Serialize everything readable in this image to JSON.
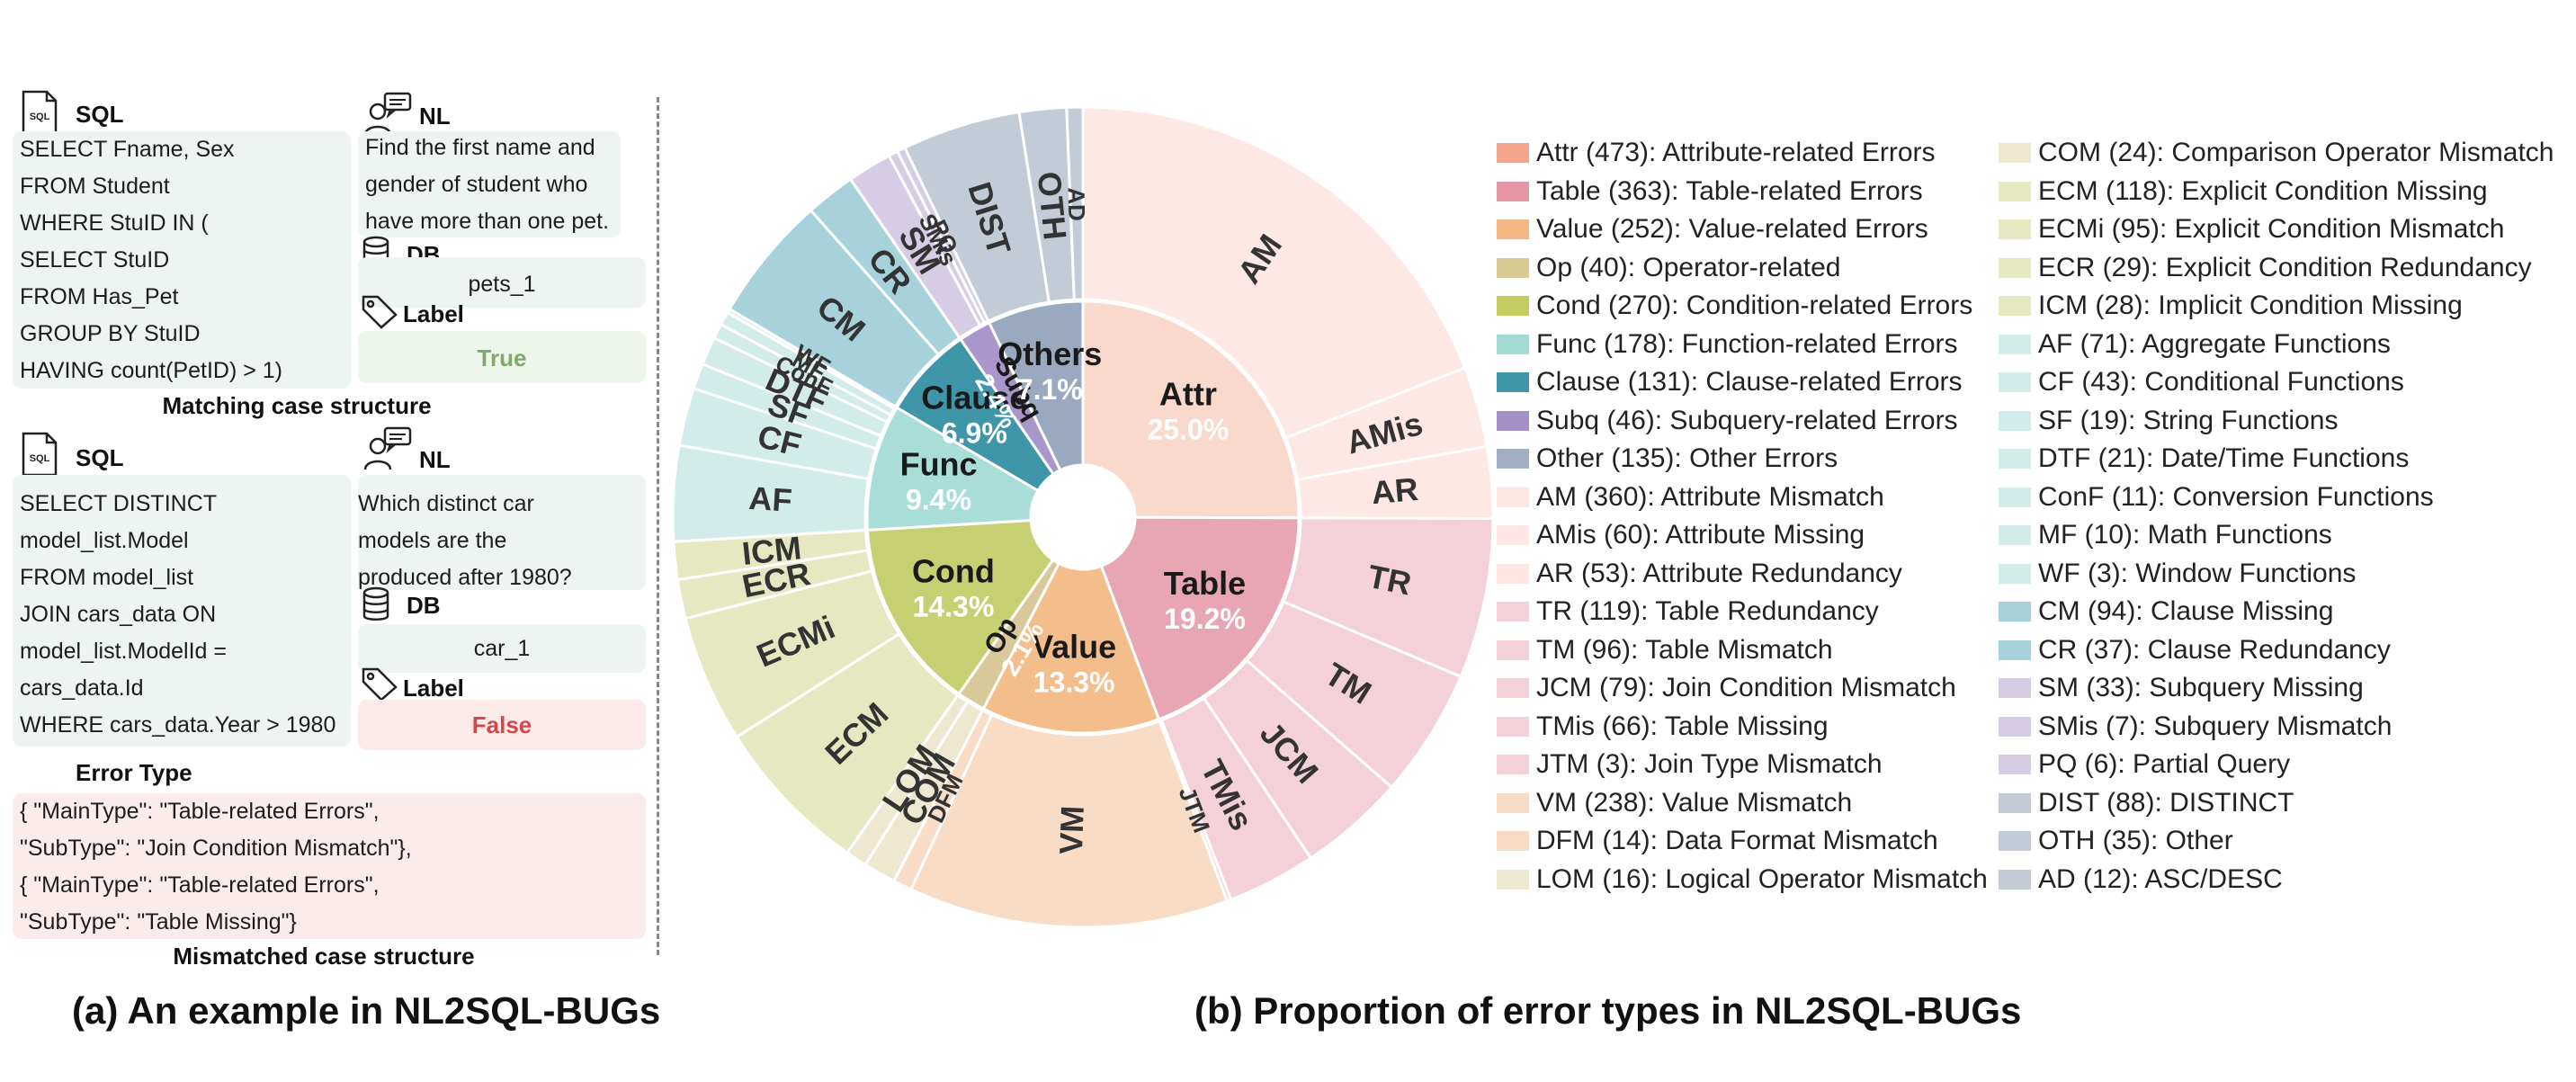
{
  "left": {
    "example1": {
      "sql_header": "SQL",
      "sql_lines": [
        "SELECT Fname, Sex",
        "FROM Student",
        "WHERE StuID IN (",
        "SELECT StuID",
        "FROM Has_Pet",
        "GROUP BY StuID",
        "HAVING count(PetID) > 1)"
      ],
      "nl_header": "NL",
      "nl_lines": [
        "Find the first name and",
        "gender of student who",
        "have more than one pet."
      ],
      "db_header": "DB",
      "db_value": "pets_1",
      "label_header": "Label",
      "label_value": "True",
      "caption": "Matching case structure"
    },
    "example2": {
      "sql_header": "SQL",
      "sql_lines": [
        "SELECT DISTINCT",
        "model_list.Model",
        "FROM model_list",
        "JOIN cars_data ON",
        "model_list.ModelId =",
        "cars_data.Id",
        "WHERE cars_data.Year > 1980"
      ],
      "nl_header": "NL",
      "nl_lines": [
        "Which distinct car",
        "models are the",
        "produced after 1980?"
      ],
      "db_header": "DB",
      "db_value": "car_1",
      "label_header": "Label",
      "label_value": "False"
    },
    "error_type": {
      "header": "Error Type",
      "lines": [
        "{ \"MainType\": \"Table-related Errors\",",
        " \"SubType\": \"Join Condition Mismatch\"},",
        "{ \"MainType\": \"Table-related Errors\",",
        " \"SubType\": \"Table Missing\"}"
      ],
      "caption": "Mismatched case structure"
    },
    "panel_caption": "(a) An example in NL2SQL-BUGs",
    "icon_labels": {
      "sql_doc": "SQL"
    }
  },
  "right": {
    "panel_caption": "(b) Proportion of error types in NL2SQL-BUGs"
  },
  "chart_data": {
    "type": "sunburst",
    "inner": [
      {
        "key": "Attr",
        "label": "Attr",
        "percent": "25.0%",
        "value": 473,
        "color": "#f9d9cc",
        "text_color": "#222"
      },
      {
        "key": "Table",
        "label": "Table",
        "percent": "19.2%",
        "value": 363,
        "color": "#e8a5b3",
        "text_color": "#222"
      },
      {
        "key": "Value",
        "label": "Value",
        "percent": "13.3%",
        "value": 252,
        "color": "#f4bd8c",
        "text_color": "#222"
      },
      {
        "key": "Op",
        "label": "Op",
        "percent": "2.1%",
        "value": 40,
        "color": "#d9c99a",
        "text_color": "#222"
      },
      {
        "key": "Cond",
        "label": "Cond",
        "percent": "14.3%",
        "value": 270,
        "color": "#c7cf73",
        "text_color": "#222"
      },
      {
        "key": "Func",
        "label": "Func",
        "percent": "9.4%",
        "value": 178,
        "color": "#a9ddd7",
        "text_color": "#222"
      },
      {
        "key": "Clause",
        "label": "Clause",
        "percent": "6.9%",
        "value": 131,
        "color": "#3e96a8",
        "text_color": "#222"
      },
      {
        "key": "Subq",
        "label": "Subq",
        "percent": "2.4%",
        "value": 46,
        "color": "#a996cb",
        "text_color": "#222"
      },
      {
        "key": "Others",
        "label": "Others",
        "percent": "7.1%",
        "value": 135,
        "color": "#99a9bf",
        "text_color": "#222"
      }
    ],
    "outer": [
      {
        "label": "AM",
        "value": 360,
        "color": "#fde8e6",
        "parent": "Attr",
        "show": true
      },
      {
        "label": "AMis",
        "value": 60,
        "color": "#fde8e6",
        "parent": "Attr",
        "show": true
      },
      {
        "label": "AR",
        "value": 53,
        "color": "#fde8e6",
        "parent": "Attr",
        "show": true
      },
      {
        "label": "TR",
        "value": 119,
        "color": "#f4d0d8",
        "parent": "Table",
        "show": true
      },
      {
        "label": "TM",
        "value": 96,
        "color": "#f4d0d8",
        "parent": "Table",
        "show": true
      },
      {
        "label": "JCM",
        "value": 79,
        "color": "#f4d0d8",
        "parent": "Table",
        "show": true
      },
      {
        "label": "TMis",
        "value": 66,
        "color": "#f4d0d8",
        "parent": "Table",
        "show": true
      },
      {
        "label": "JTM",
        "value": 3,
        "color": "#f4d0d8",
        "parent": "Table",
        "show": true
      },
      {
        "label": "VM",
        "value": 238,
        "color": "#f8dcc6",
        "parent": "Value",
        "show": true
      },
      {
        "label": "DFM",
        "value": 14,
        "color": "#f8dcc6",
        "parent": "Value",
        "show": true
      },
      {
        "label": "COM",
        "value": 24,
        "color": "#eee8d0",
        "parent": "Op",
        "show": true
      },
      {
        "label": "LOM",
        "value": 16,
        "color": "#eee8d0",
        "parent": "Op",
        "show": true
      },
      {
        "label": "ECM",
        "value": 118,
        "color": "#e5e8c1",
        "parent": "Cond",
        "show": true
      },
      {
        "label": "ECMi",
        "value": 95,
        "color": "#e5e8c1",
        "parent": "Cond",
        "show": true
      },
      {
        "label": "ECR",
        "value": 29,
        "color": "#e5e8c1",
        "parent": "Cond",
        "show": true
      },
      {
        "label": "ICM",
        "value": 28,
        "color": "#e5e8c1",
        "parent": "Cond",
        "show": true
      },
      {
        "label": "AF",
        "value": 71,
        "color": "#d2ede9",
        "parent": "Func",
        "show": true
      },
      {
        "label": "CF",
        "value": 43,
        "color": "#d2ede9",
        "parent": "Func",
        "show": true
      },
      {
        "label": "SF",
        "value": 19,
        "color": "#d2ede9",
        "parent": "Func",
        "show": true
      },
      {
        "label": "DTF",
        "value": 21,
        "color": "#d2ede9",
        "parent": "Func",
        "show": true
      },
      {
        "label": "ConF",
        "value": 11,
        "color": "#d2ede9",
        "parent": "Func",
        "show": true
      },
      {
        "label": "MF",
        "value": 10,
        "color": "#d2ede9",
        "parent": "Func",
        "show": true
      },
      {
        "label": "WF",
        "value": 3,
        "color": "#d2ede9",
        "parent": "Func",
        "show": true
      },
      {
        "label": "CM",
        "value": 94,
        "color": "#a7d2dc",
        "parent": "Clause",
        "show": true
      },
      {
        "label": "CR",
        "value": 37,
        "color": "#a7d2dc",
        "parent": "Clause",
        "show": true
      },
      {
        "label": "SM",
        "value": 33,
        "color": "#d6cce6",
        "parent": "Subq",
        "show": true
      },
      {
        "label": "SMis",
        "value": 7,
        "color": "#d6cce6",
        "parent": "Subq",
        "show": true
      },
      {
        "label": "PQ",
        "value": 6,
        "color": "#d6cce6",
        "parent": "Subq",
        "show": true
      },
      {
        "label": "DIST",
        "value": 88,
        "color": "#c3cbd7",
        "parent": "Others",
        "show": true
      },
      {
        "label": "OTH",
        "value": 35,
        "color": "#c3cbd7",
        "parent": "Others",
        "show": true
      },
      {
        "label": "AD",
        "value": 12,
        "color": "#c3cbd7",
        "parent": "Others",
        "show": true
      }
    ],
    "legend_col1": [
      {
        "text": "Attr (473): Attribute-related Errors",
        "color": "#f4a68d"
      },
      {
        "text": "Table (363): Table-related Errors",
        "color": "#e595a6"
      },
      {
        "text": "Value (252): Value-related Errors",
        "color": "#f4b784"
      },
      {
        "text": "Op (40): Operator-related",
        "color": "#d9c993"
      },
      {
        "text": "Cond (270): Condition-related Errors",
        "color": "#c4cd62"
      },
      {
        "text": "Func (178): Function-related Errors",
        "color": "#a4dad4"
      },
      {
        "text": "Clause (131): Clause-related Errors",
        "color": "#3e96a8"
      },
      {
        "text": "Subq (46): Subquery-related Errors",
        "color": "#a48fc8"
      },
      {
        "text": "Other (135): Other Errors",
        "color": "#a2afc2"
      },
      {
        "text": "AM (360): Attribute Mismatch",
        "color": "#fde6e4"
      },
      {
        "text": "AMis (60): Attribute Missing",
        "color": "#fde6e4"
      },
      {
        "text": "AR (53): Attribute Redundancy",
        "color": "#fde6e4"
      },
      {
        "text": "TR (119): Table Redundancy",
        "color": "#f4d0d8"
      },
      {
        "text": "TM (96): Table Mismatch",
        "color": "#f4d0d8"
      },
      {
        "text": "JCM (79): Join Condition Mismatch",
        "color": "#f4d0d8"
      },
      {
        "text": "TMis (66): Table Missing",
        "color": "#f4d0d8"
      },
      {
        "text": "JTM (3): Join Type Mismatch",
        "color": "#f4d0d8"
      },
      {
        "text": "VM (238): Value Mismatch",
        "color": "#f8dcc6"
      },
      {
        "text": "DFM (14): Data Format Mismatch",
        "color": "#f8dcc6"
      },
      {
        "text": "LOM (16): Logical Operator Mismatch",
        "color": "#eee8d0"
      }
    ],
    "legend_col2": [
      {
        "text": "COM (24): Comparison Operator Mismatch",
        "color": "#eee8d0"
      },
      {
        "text": "ECM (118): Explicit Condition Missing",
        "color": "#e5e8c1"
      },
      {
        "text": "ECMi (95): Explicit Condition Mismatch",
        "color": "#e5e8c1"
      },
      {
        "text": "ECR (29): Explicit Condition Redundancy",
        "color": "#e5e8c1"
      },
      {
        "text": "ICM (28): Implicit Condition Missing",
        "color": "#e5e8c1"
      },
      {
        "text": "AF (71): Aggregate Functions",
        "color": "#d2ede9"
      },
      {
        "text": "CF (43): Conditional Functions",
        "color": "#d2ede9"
      },
      {
        "text": "SF (19): String Functions",
        "color": "#d2ede9"
      },
      {
        "text": "DTF (21): Date/Time Functions",
        "color": "#d2ede9"
      },
      {
        "text": "ConF (11): Conversion Functions",
        "color": "#d2ede9"
      },
      {
        "text": "MF (10): Math Functions",
        "color": "#d2ede9"
      },
      {
        "text": "WF (3): Window Functions",
        "color": "#d2ede9"
      },
      {
        "text": "CM (94): Clause Missing",
        "color": "#a7d2dc"
      },
      {
        "text": "CR (37): Clause Redundancy",
        "color": "#a7d2dc"
      },
      {
        "text": "SM (33): Subquery Missing",
        "color": "#d6cce6"
      },
      {
        "text": "SMis (7): Subquery Mismatch",
        "color": "#d6cce6"
      },
      {
        "text": "PQ (6): Partial Query",
        "color": "#d6cce6"
      },
      {
        "text": "DIST (88): DISTINCT",
        "color": "#c3cbd7"
      },
      {
        "text": "OTH (35): Other",
        "color": "#c3cbd7"
      },
      {
        "text": "AD (12): ASC/DESC",
        "color": "#c3cbd7"
      }
    ]
  }
}
